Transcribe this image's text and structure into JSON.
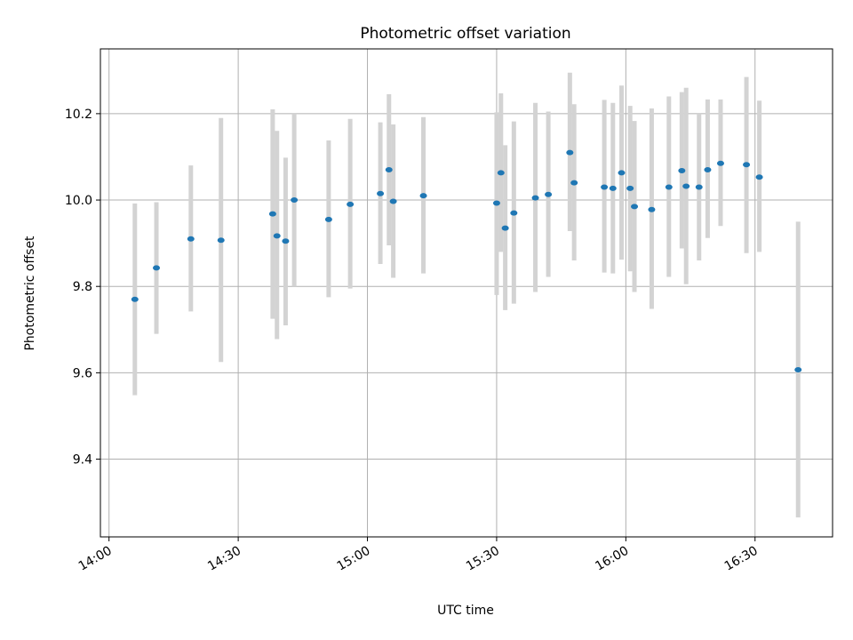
{
  "chart_data": {
    "type": "scatter",
    "title": "Photometric offset variation",
    "xlabel": "UTC time",
    "ylabel": "Photometric offset",
    "x_tick_labels": [
      "14:00",
      "14:30",
      "15:00",
      "15:30",
      "16:00",
      "16:30"
    ],
    "x_tick_values": [
      "14:00",
      "14:30",
      "15:00",
      "15:30",
      "16:00",
      "16:30"
    ],
    "y_ticks": [
      9.4,
      9.6,
      9.8,
      10.0,
      10.2
    ],
    "y_tick_labels": [
      "9.4",
      "9.6",
      "9.8",
      "10.0",
      "10.2"
    ],
    "xlim": [
      "13:58",
      "16:48"
    ],
    "ylim": [
      9.22,
      10.35
    ],
    "grid": true,
    "point_color": "#1f77b4",
    "errorbar_color": "#d3d3d3",
    "series": [
      {
        "points": [
          {
            "x": "14:06",
            "y": 9.77,
            "lo": 9.548,
            "hi": 9.992
          },
          {
            "x": "14:11",
            "y": 9.843,
            "lo": 9.69,
            "hi": 9.995
          },
          {
            "x": "14:19",
            "y": 9.91,
            "lo": 9.742,
            "hi": 10.08
          },
          {
            "x": "14:26",
            "y": 9.907,
            "lo": 9.625,
            "hi": 10.19
          },
          {
            "x": "14:38",
            "y": 9.968,
            "lo": 9.725,
            "hi": 10.21
          },
          {
            "x": "14:39",
            "y": 9.917,
            "lo": 9.678,
            "hi": 10.16
          },
          {
            "x": "14:41",
            "y": 9.905,
            "lo": 9.71,
            "hi": 10.098
          },
          {
            "x": "14:43",
            "y": 10.0,
            "lo": 9.8,
            "hi": 10.2
          },
          {
            "x": "14:51",
            "y": 9.955,
            "lo": 9.775,
            "hi": 10.138
          },
          {
            "x": "14:56",
            "y": 9.99,
            "lo": 9.795,
            "hi": 10.188
          },
          {
            "x": "15:03",
            "y": 10.015,
            "lo": 9.852,
            "hi": 10.18
          },
          {
            "x": "15:05",
            "y": 10.07,
            "lo": 9.895,
            "hi": 10.245
          },
          {
            "x": "15:06",
            "y": 9.997,
            "lo": 9.82,
            "hi": 10.175
          },
          {
            "x": "15:13",
            "y": 10.01,
            "lo": 9.83,
            "hi": 10.192
          },
          {
            "x": "15:30",
            "y": 9.993,
            "lo": 9.78,
            "hi": 10.203
          },
          {
            "x": "15:31",
            "y": 10.063,
            "lo": 9.88,
            "hi": 10.247
          },
          {
            "x": "15:32",
            "y": 9.935,
            "lo": 9.745,
            "hi": 10.127
          },
          {
            "x": "15:34",
            "y": 9.97,
            "lo": 9.76,
            "hi": 10.182
          },
          {
            "x": "15:39",
            "y": 10.005,
            "lo": 9.787,
            "hi": 10.225
          },
          {
            "x": "15:42",
            "y": 10.013,
            "lo": 9.822,
            "hi": 10.205
          },
          {
            "x": "15:47",
            "y": 10.11,
            "lo": 9.928,
            "hi": 10.295
          },
          {
            "x": "15:48",
            "y": 10.04,
            "lo": 9.86,
            "hi": 10.222
          },
          {
            "x": "15:55",
            "y": 10.03,
            "lo": 9.832,
            "hi": 10.232
          },
          {
            "x": "15:57",
            "y": 10.027,
            "lo": 9.83,
            "hi": 10.225
          },
          {
            "x": "15:59",
            "y": 10.063,
            "lo": 9.862,
            "hi": 10.265
          },
          {
            "x": "16:01",
            "y": 10.027,
            "lo": 9.835,
            "hi": 10.218
          },
          {
            "x": "16:02",
            "y": 9.985,
            "lo": 9.787,
            "hi": 10.183
          },
          {
            "x": "16:06",
            "y": 9.978,
            "lo": 9.748,
            "hi": 10.212
          },
          {
            "x": "16:10",
            "y": 10.03,
            "lo": 9.822,
            "hi": 10.24
          },
          {
            "x": "16:13",
            "y": 10.068,
            "lo": 9.888,
            "hi": 10.25
          },
          {
            "x": "16:14",
            "y": 10.032,
            "lo": 9.805,
            "hi": 10.26
          },
          {
            "x": "16:17",
            "y": 10.03,
            "lo": 9.86,
            "hi": 10.2
          },
          {
            "x": "16:19",
            "y": 10.07,
            "lo": 9.912,
            "hi": 10.233
          },
          {
            "x": "16:22",
            "y": 10.085,
            "lo": 9.94,
            "hi": 10.233
          },
          {
            "x": "16:28",
            "y": 10.082,
            "lo": 9.877,
            "hi": 10.285
          },
          {
            "x": "16:31",
            "y": 10.053,
            "lo": 9.88,
            "hi": 10.23
          },
          {
            "x": "16:40",
            "y": 9.607,
            "lo": 9.265,
            "hi": 9.95
          }
        ]
      }
    ]
  }
}
